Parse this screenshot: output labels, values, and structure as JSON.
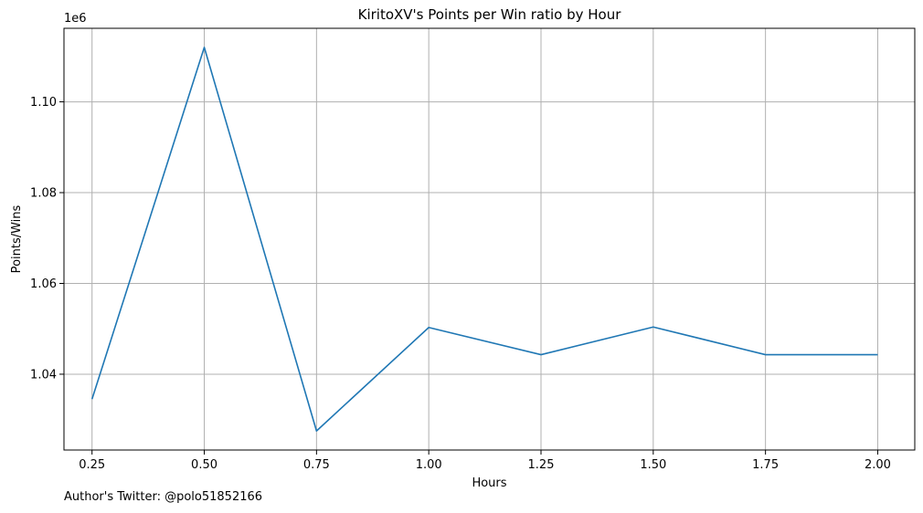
{
  "chart_data": {
    "type": "line",
    "title": "KiritoXV's Points per Win ratio by Hour",
    "xlabel": "Hours",
    "ylabel": "Points/Wins",
    "y_offset_label": "1e6",
    "x": [
      0.25,
      0.5,
      0.75,
      1.0,
      1.25,
      1.5,
      1.75,
      2.0
    ],
    "series": [
      {
        "values": [
          1.0345,
          1.112,
          1.0275,
          1.0503,
          1.0443,
          1.0504,
          1.0443,
          1.0443
        ],
        "color": "#1f77b4"
      }
    ],
    "x_ticks": [
      0.25,
      0.5,
      0.75,
      1.0,
      1.25,
      1.5,
      1.75,
      2.0
    ],
    "x_tick_labels": [
      "0.25",
      "0.50",
      "0.75",
      "1.00",
      "1.25",
      "1.50",
      "1.75",
      "2.00"
    ],
    "y_ticks": [
      1.04,
      1.06,
      1.08,
      1.1
    ],
    "y_tick_labels": [
      "1.04",
      "1.06",
      "1.08",
      "1.10"
    ],
    "xlim": [
      0.1875,
      2.0825
    ],
    "ylim": [
      1.0233,
      1.1162
    ],
    "grid": true,
    "grid_color": "#b0b0b0"
  },
  "footnote": "Author's Twitter: @polo51852166"
}
